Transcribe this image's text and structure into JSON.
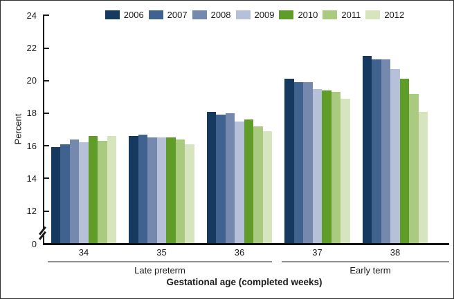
{
  "figure": {
    "background": "#ffffff",
    "border_color": "#2e2e2e"
  },
  "legend": {
    "position": "top",
    "items": [
      {
        "label": "2006",
        "color": "#163a5f"
      },
      {
        "label": "2007",
        "color": "#3f628e"
      },
      {
        "label": "2008",
        "color": "#7489ad"
      },
      {
        "label": "2009",
        "color": "#b6c0d8"
      },
      {
        "label": "2010",
        "color": "#5f9c28"
      },
      {
        "label": "2011",
        "color": "#aacb7f"
      },
      {
        "label": "2012",
        "color": "#d6e5bd"
      }
    ]
  },
  "y_axis": {
    "label": "Percent",
    "tick_labels": [
      "24",
      "22",
      "20",
      "18",
      "16",
      "14",
      "12",
      "0"
    ],
    "has_break": true
  },
  "x_axis": {
    "title": "Gestational age (completed weeks)",
    "tick_labels": [
      "34",
      "35",
      "36",
      "37",
      "38"
    ],
    "brackets": [
      {
        "label": "Late preterm",
        "from_category": 0,
        "to_category": 2
      },
      {
        "label": "Early term",
        "from_category": 3,
        "to_category": 4
      }
    ]
  },
  "chart_data": {
    "type": "bar",
    "categories": [
      "34",
      "35",
      "36",
      "37",
      "38"
    ],
    "series": [
      {
        "name": "2006",
        "color": "#163a5f",
        "values": [
          15.9,
          16.6,
          18.1,
          20.1,
          21.5
        ]
      },
      {
        "name": "2007",
        "color": "#3f628e",
        "values": [
          16.1,
          16.7,
          17.9,
          19.9,
          21.3
        ]
      },
      {
        "name": "2008",
        "color": "#7489ad",
        "values": [
          16.4,
          16.5,
          18.0,
          19.9,
          21.3
        ]
      },
      {
        "name": "2009",
        "color": "#b6c0d8",
        "values": [
          16.2,
          16.5,
          17.5,
          19.5,
          20.7
        ]
      },
      {
        "name": "2010",
        "color": "#5f9c28",
        "values": [
          16.6,
          16.5,
          17.6,
          19.4,
          20.1
        ]
      },
      {
        "name": "2011",
        "color": "#aacb7f",
        "values": [
          16.3,
          16.4,
          17.2,
          19.3,
          19.2
        ]
      },
      {
        "name": "2012",
        "color": "#d6e5bd",
        "values": [
          16.6,
          16.1,
          16.9,
          18.9,
          18.1
        ]
      }
    ],
    "ylabel": "Percent",
    "xlabel": "Gestational age (completed weeks)",
    "ylim": [
      0,
      24
    ],
    "y_ticks": [
      0,
      12,
      14,
      16,
      18,
      20,
      22,
      24
    ],
    "y_break_between": [
      0,
      12
    ],
    "grid": false,
    "legend_position": "top"
  }
}
